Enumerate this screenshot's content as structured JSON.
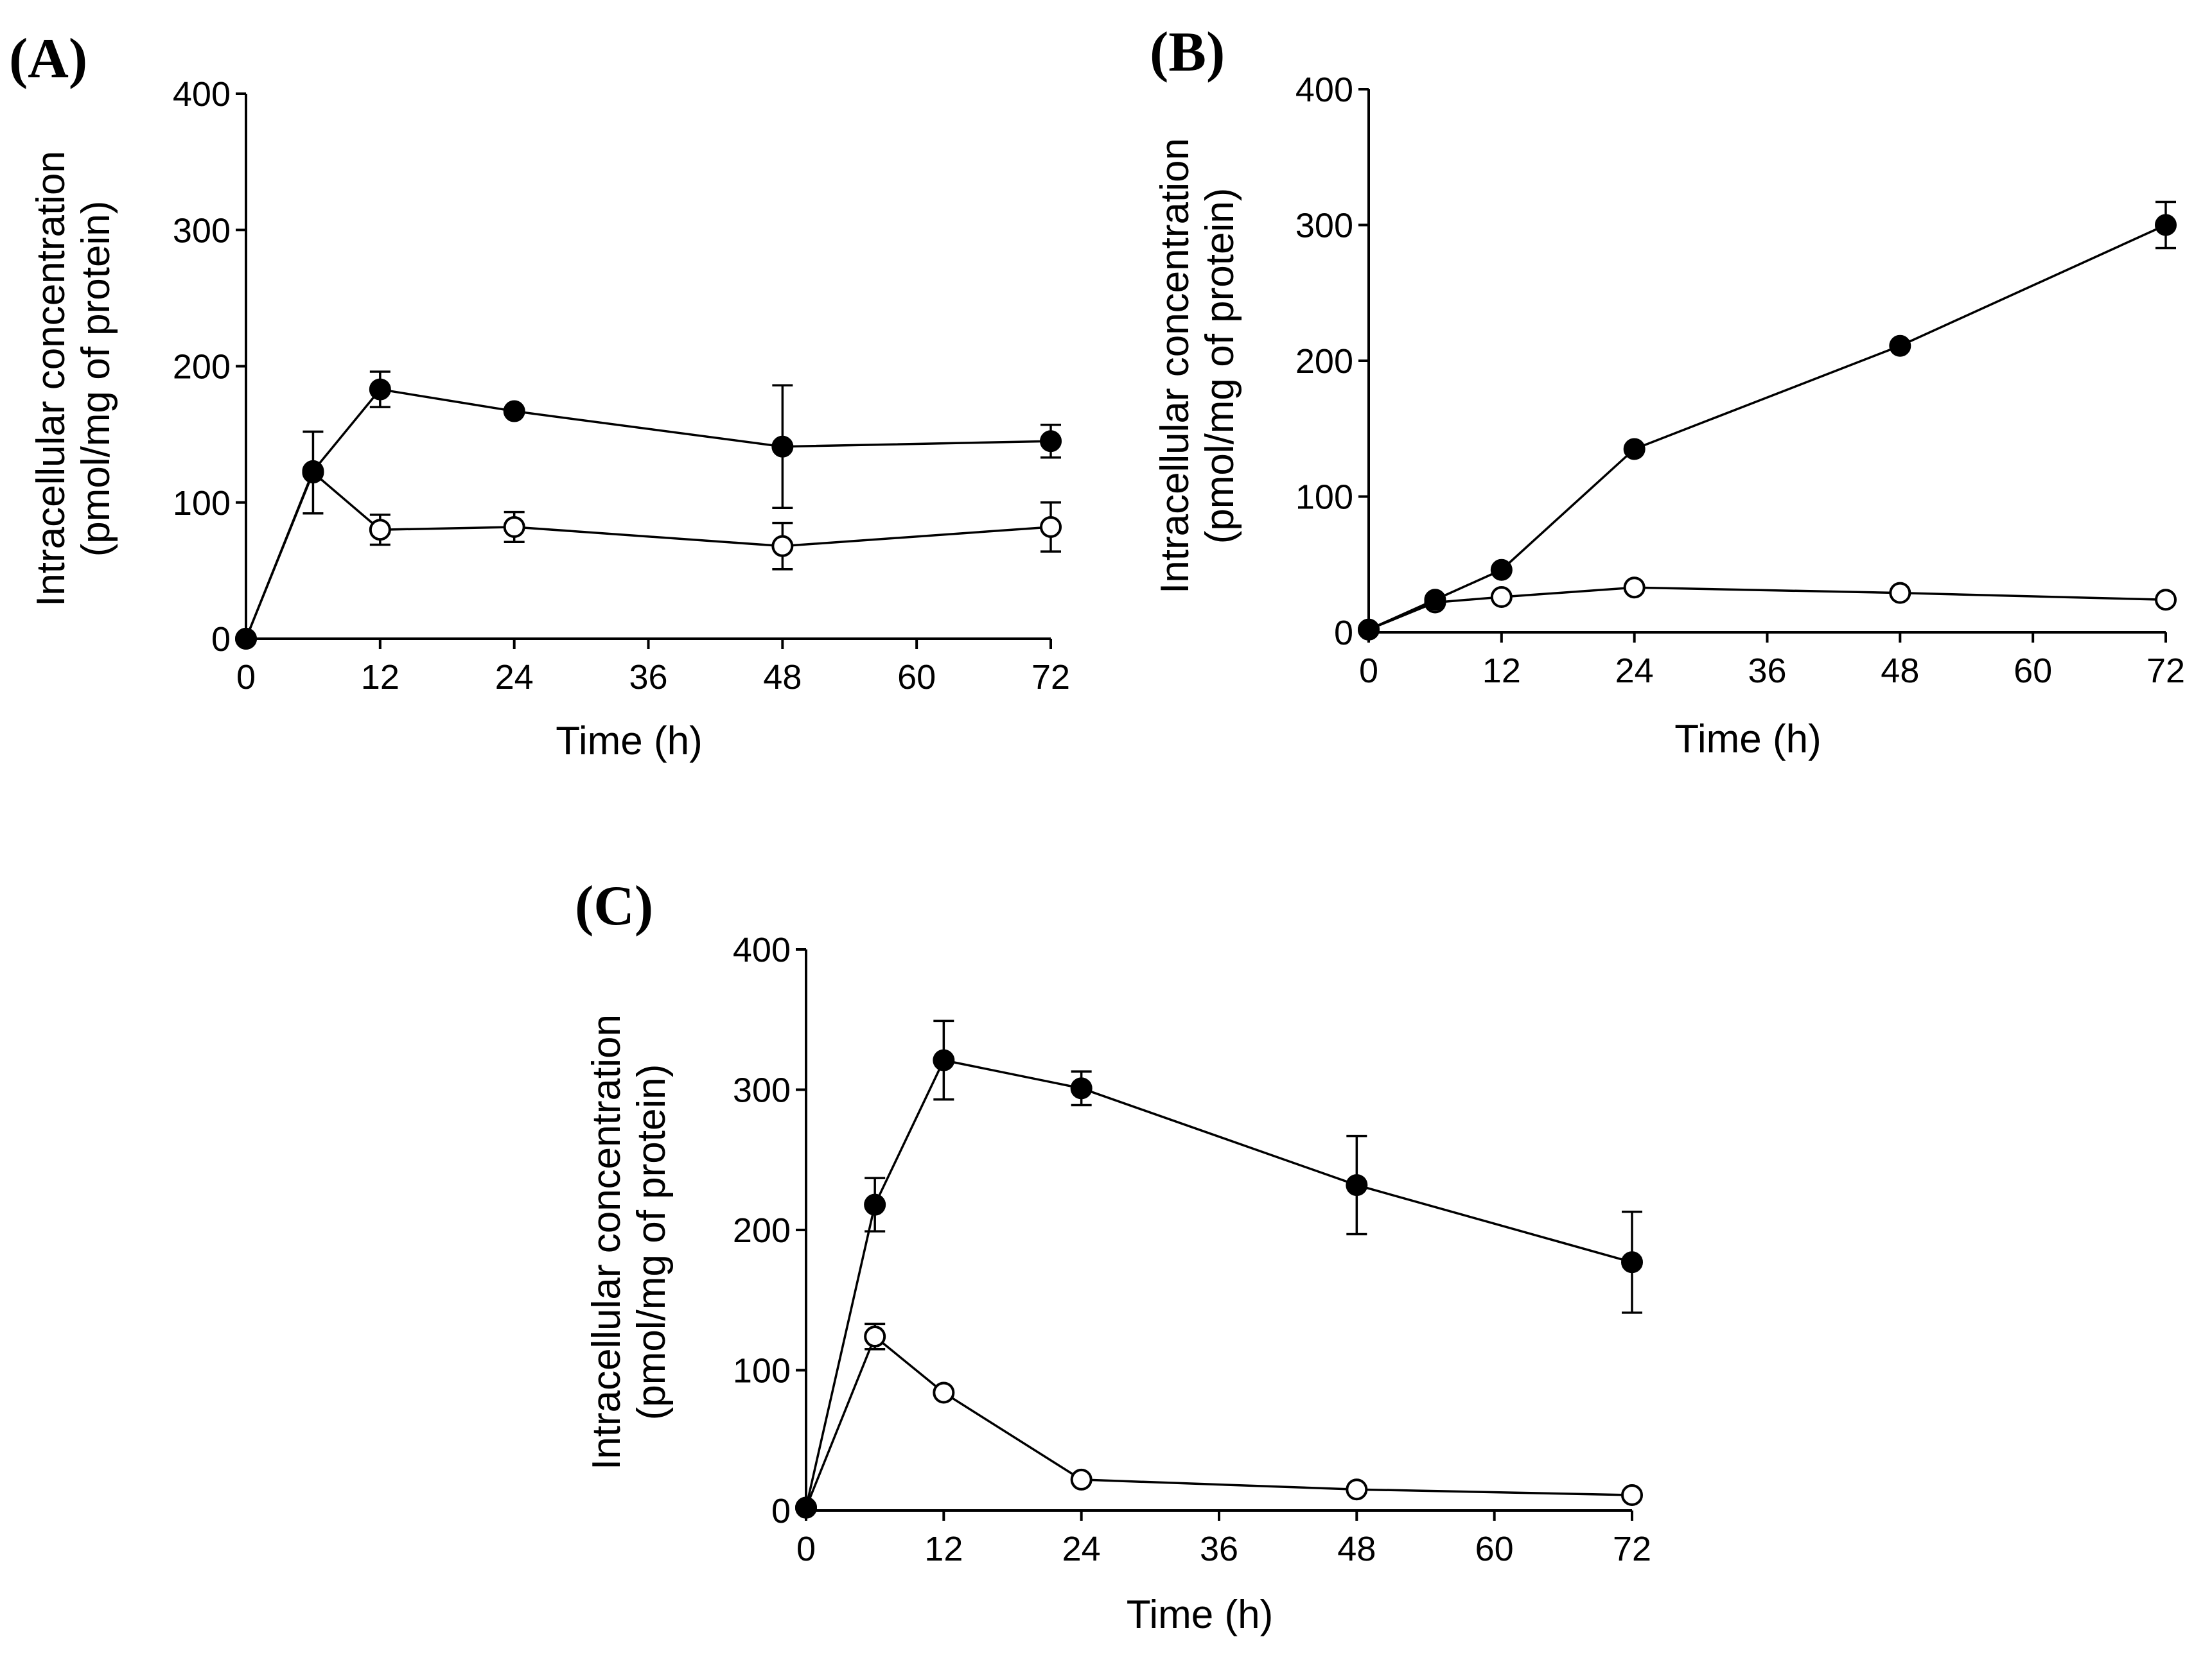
{
  "chart_data": [
    {
      "panel": "(A)",
      "type": "line",
      "xlabel": "Time (h)",
      "ylabel": [
        "Intracellular concentration",
        "(pmol/mg of protein)"
      ],
      "xlim": [
        0,
        72
      ],
      "ylim": [
        0,
        400
      ],
      "xticks": [
        0,
        12,
        24,
        36,
        48,
        60,
        72
      ],
      "yticks": [
        0,
        100,
        200,
        300,
        400
      ],
      "grid": false,
      "series": [
        {
          "marker": "filled",
          "x": [
            0,
            6,
            12,
            24,
            48,
            72
          ],
          "y": [
            0,
            123,
            183,
            167,
            141,
            145
          ],
          "err": [
            0,
            0,
            13,
            0,
            45,
            12
          ]
        },
        {
          "marker": "open",
          "x": [
            0,
            6,
            12,
            24,
            48,
            72
          ],
          "y": [
            0,
            122,
            80,
            82,
            68,
            82
          ],
          "err": [
            0,
            30,
            11,
            11,
            17,
            18
          ]
        }
      ]
    },
    {
      "panel": "(B)",
      "type": "line",
      "xlabel": "Time (h)",
      "ylabel": [
        "Intracellular  concentration",
        "(pmol/mg of protein)"
      ],
      "xlim": [
        0,
        72
      ],
      "ylim": [
        0,
        400
      ],
      "xticks": [
        0,
        12,
        24,
        36,
        48,
        60,
        72
      ],
      "yticks": [
        0,
        100,
        200,
        300,
        400
      ],
      "grid": false,
      "series": [
        {
          "marker": "filled",
          "x": [
            0,
            6,
            12,
            24,
            48,
            72
          ],
          "y": [
            2,
            24,
            46,
            135,
            211,
            300
          ],
          "err": [
            0,
            0,
            0,
            0,
            0,
            17
          ]
        },
        {
          "marker": "open",
          "x": [
            0,
            6,
            12,
            24,
            48,
            72
          ],
          "y": [
            2,
            22,
            26,
            33,
            29,
            24
          ],
          "err": [
            0,
            0,
            0,
            0,
            0,
            0
          ]
        }
      ]
    },
    {
      "panel": "(C)",
      "type": "line",
      "xlabel": "Time (h)",
      "ylabel": [
        "Intracellular concentration",
        "(pmol/mg of protein)"
      ],
      "xlim": [
        0,
        72
      ],
      "ylim": [
        0,
        400
      ],
      "xticks": [
        0,
        12,
        24,
        36,
        48,
        60,
        72
      ],
      "yticks": [
        0,
        100,
        200,
        300,
        400
      ],
      "grid": false,
      "series": [
        {
          "marker": "filled",
          "x": [
            0,
            6,
            12,
            24,
            48,
            72
          ],
          "y": [
            2,
            218,
            321,
            301,
            232,
            177
          ],
          "err": [
            0,
            19,
            28,
            12,
            35,
            36
          ]
        },
        {
          "marker": "open",
          "x": [
            0,
            6,
            12,
            24,
            48,
            72
          ],
          "y": [
            2,
            124,
            84,
            22,
            15,
            11
          ],
          "err": [
            0,
            9,
            0,
            0,
            0,
            0
          ]
        }
      ]
    }
  ]
}
